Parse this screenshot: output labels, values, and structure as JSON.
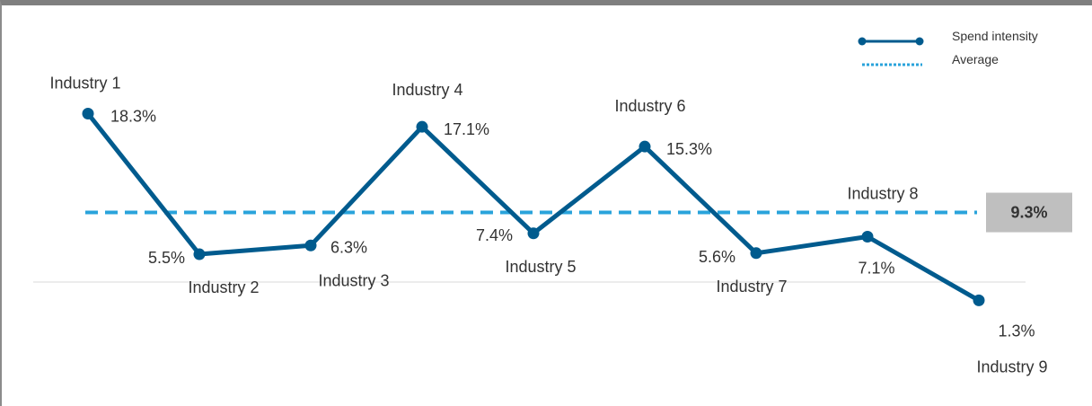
{
  "chart_data": {
    "type": "line",
    "categories": [
      "Industry 1",
      "Industry 2",
      "Industry 3",
      "Industry 4",
      "Industry 5",
      "Industry 6",
      "Industry 7",
      "Industry 8",
      "Industry 9"
    ],
    "series": [
      {
        "name": "Spend intensity",
        "values": [
          18.3,
          5.5,
          6.3,
          17.1,
          7.4,
          15.3,
          5.6,
          7.1,
          1.3
        ],
        "value_labels": [
          "18.3%",
          "5.5%",
          "6.3%",
          "17.1%",
          "7.4%",
          "15.3%",
          "5.6%",
          "7.1%",
          "1.3%"
        ],
        "color": "#005b8e"
      }
    ],
    "average": {
      "name": "Average",
      "value": 9.3,
      "label": "9.3%",
      "color": "#29a3db"
    },
    "title": "",
    "xlabel": "",
    "ylabel": "",
    "ylim": [
      0,
      20
    ],
    "grid": false,
    "legend": "top-right",
    "avg_badge_color": "#bfbfbf"
  }
}
